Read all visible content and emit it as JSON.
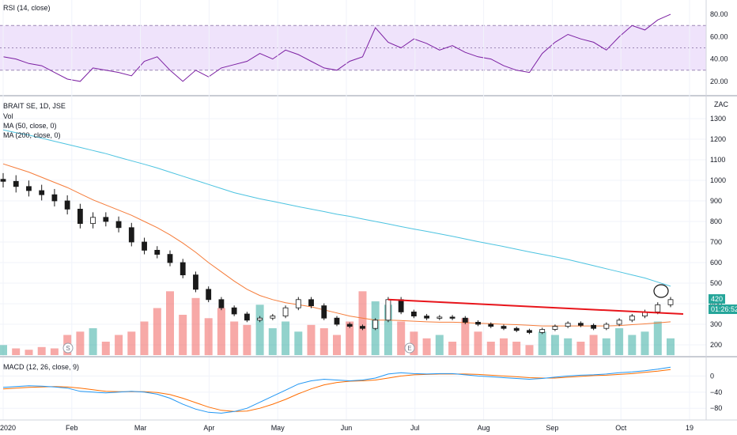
{
  "panes": {
    "rsi_title": "RSI (14, close)",
    "price_title": "BRAIT SE, 1D, JSE",
    "vol_title": "Vol",
    "ma50_title": "MA (50, close, 0)",
    "ma200_title": "MA (200, close, 0)",
    "macd_title": "MACD (12, 26, close, 9)"
  },
  "axis": {
    "currency": "ZAC",
    "rsi_ticks": [
      "80.00",
      "60.00",
      "40.00",
      "20.00"
    ],
    "price_ticks": [
      "1300",
      "1200",
      "1100",
      "1000",
      "900",
      "800",
      "700",
      "600",
      "500",
      "400",
      "300",
      "200"
    ],
    "macd_ticks": [
      "0",
      "−40",
      "−80"
    ],
    "x_ticks": [
      "2020",
      "Feb",
      "Mar",
      "Apr",
      "May",
      "Jun",
      "Jul",
      "Aug",
      "Sep",
      "Oct",
      "19"
    ]
  },
  "last_price": {
    "value": "420",
    "countdown": "01:26:52"
  },
  "markers": {
    "s": "S",
    "e": "E"
  },
  "colors": {
    "up": "#26a69a",
    "down": "#ef5350",
    "ma50": "#f57c3a",
    "ma200": "#4cc3e0",
    "rsi": "#7b1fa2",
    "rsi_band": "#efe3fb",
    "macd": "#2196f3",
    "signal": "#ff6d00",
    "trendline": "#e8151b",
    "tag": "#26a69a"
  },
  "chart_data": [
    {
      "type": "candlestick",
      "title": "BRAIT SE, 1D, JSE",
      "ylim": [
        150,
        1400
      ],
      "x": [
        "2020-01-02",
        "2020-01-08",
        "2020-01-14",
        "2020-01-20",
        "2020-01-24",
        "2020-01-28",
        "2020-02-03",
        "2020-02-07",
        "2020-02-13",
        "2020-02-19",
        "2020-02-25",
        "2020-03-02",
        "2020-03-06",
        "2020-03-12",
        "2020-03-18",
        "2020-03-23",
        "2020-03-27",
        "2020-04-02",
        "2020-04-08",
        "2020-04-16",
        "2020-04-22",
        "2020-04-28",
        "2020-05-04",
        "2020-05-08",
        "2020-05-14",
        "2020-05-20",
        "2020-05-26",
        "2020-06-01",
        "2020-06-05",
        "2020-06-09",
        "2020-06-15",
        "2020-06-19",
        "2020-06-25",
        "2020-07-01",
        "2020-07-07",
        "2020-07-13",
        "2020-07-17",
        "2020-07-23",
        "2020-07-29",
        "2020-08-04",
        "2020-08-10",
        "2020-08-14",
        "2020-08-20",
        "2020-08-26",
        "2020-09-01",
        "2020-09-07",
        "2020-09-11",
        "2020-09-17",
        "2020-09-23",
        "2020-09-29",
        "2020-10-05",
        "2020-10-09",
        "2020-10-15"
      ],
      "close": [
        995,
        970,
        950,
        930,
        900,
        860,
        790,
        820,
        800,
        770,
        700,
        660,
        640,
        600,
        540,
        470,
        420,
        380,
        350,
        320,
        330,
        340,
        380,
        420,
        390,
        330,
        300,
        290,
        280,
        320,
        420,
        360,
        340,
        330,
        335,
        330,
        310,
        300,
        290,
        280,
        270,
        260,
        275,
        290,
        305,
        295,
        280,
        300,
        320,
        340,
        360,
        395,
        420
      ],
      "ma50": [
        1080,
        1060,
        1040,
        1015,
        990,
        965,
        935,
        905,
        880,
        855,
        830,
        800,
        770,
        735,
        695,
        650,
        600,
        555,
        510,
        470,
        440,
        420,
        405,
        395,
        385,
        370,
        355,
        340,
        330,
        320,
        320,
        318,
        315,
        312,
        310,
        310,
        308,
        305,
        303,
        300,
        298,
        295,
        292,
        292,
        292,
        292,
        292,
        292,
        294,
        298,
        302,
        307,
        312
      ],
      "ma200": [
        1245,
        1232,
        1220,
        1205,
        1190,
        1175,
        1160,
        1145,
        1130,
        1112,
        1095,
        1078,
        1060,
        1040,
        1020,
        1000,
        980,
        960,
        940,
        925,
        910,
        898,
        885,
        872,
        860,
        848,
        835,
        825,
        812,
        800,
        788,
        775,
        763,
        752,
        740,
        728,
        715,
        702,
        690,
        678,
        665,
        652,
        640,
        628,
        615,
        600,
        585,
        570,
        555,
        540,
        525,
        505,
        485
      ]
    },
    {
      "type": "bar",
      "title": "Vol",
      "x": [
        "2020-01-02",
        "2020-01-08",
        "2020-01-14",
        "2020-01-20",
        "2020-01-24",
        "2020-01-28",
        "2020-02-03",
        "2020-02-07",
        "2020-02-13",
        "2020-02-19",
        "2020-02-25",
        "2020-03-02",
        "2020-03-06",
        "2020-03-12",
        "2020-03-18",
        "2020-03-23",
        "2020-03-27",
        "2020-04-02",
        "2020-04-08",
        "2020-04-16",
        "2020-04-22",
        "2020-04-28",
        "2020-05-04",
        "2020-05-08",
        "2020-05-14",
        "2020-05-20",
        "2020-05-26",
        "2020-06-01",
        "2020-06-05",
        "2020-06-09",
        "2020-06-15",
        "2020-06-19",
        "2020-06-25",
        "2020-07-01",
        "2020-07-07",
        "2020-07-13",
        "2020-07-17",
        "2020-07-23",
        "2020-07-29",
        "2020-08-04",
        "2020-08-10",
        "2020-08-14",
        "2020-08-20",
        "2020-08-26",
        "2020-09-01",
        "2020-09-07",
        "2020-09-11",
        "2020-09-17",
        "2020-09-23",
        "2020-09-29",
        "2020-10-05",
        "2020-10-09",
        "2020-10-15"
      ],
      "values": [
        0.15,
        0.1,
        0.08,
        0.12,
        0.1,
        0.3,
        0.35,
        0.4,
        0.2,
        0.3,
        0.35,
        0.5,
        0.7,
        0.95,
        0.6,
        0.85,
        0.55,
        0.7,
        0.5,
        0.45,
        0.75,
        0.4,
        0.5,
        0.35,
        0.45,
        0.4,
        0.3,
        0.5,
        0.95,
        0.8,
        0.75,
        0.5,
        0.35,
        0.25,
        0.3,
        0.2,
        0.55,
        0.35,
        0.2,
        0.25,
        0.2,
        0.15,
        0.35,
        0.3,
        0.25,
        0.2,
        0.3,
        0.25,
        0.4,
        0.3,
        0.35,
        0.5,
        0.25
      ]
    },
    {
      "type": "line",
      "title": "RSI (14, close)",
      "ylim": [
        10,
        90
      ],
      "band": [
        30,
        70
      ],
      "x": [
        "2020-01-02",
        "2020-01-08",
        "2020-01-14",
        "2020-01-20",
        "2020-01-24",
        "2020-01-28",
        "2020-02-03",
        "2020-02-07",
        "2020-02-13",
        "2020-02-19",
        "2020-02-25",
        "2020-03-02",
        "2020-03-06",
        "2020-03-12",
        "2020-03-18",
        "2020-03-23",
        "2020-03-27",
        "2020-04-02",
        "2020-04-08",
        "2020-04-16",
        "2020-04-22",
        "2020-04-28",
        "2020-05-04",
        "2020-05-08",
        "2020-05-14",
        "2020-05-20",
        "2020-05-26",
        "2020-06-01",
        "2020-06-05",
        "2020-06-09",
        "2020-06-15",
        "2020-06-19",
        "2020-06-25",
        "2020-07-01",
        "2020-07-07",
        "2020-07-13",
        "2020-07-17",
        "2020-07-23",
        "2020-07-29",
        "2020-08-04",
        "2020-08-10",
        "2020-08-14",
        "2020-08-20",
        "2020-08-26",
        "2020-09-01",
        "2020-09-07",
        "2020-09-11",
        "2020-09-17",
        "2020-09-23",
        "2020-09-29",
        "2020-10-05",
        "2020-10-09",
        "2020-10-15"
      ],
      "values": [
        42,
        40,
        36,
        34,
        28,
        22,
        20,
        32,
        30,
        28,
        25,
        38,
        42,
        30,
        20,
        30,
        24,
        32,
        35,
        38,
        45,
        40,
        48,
        44,
        38,
        32,
        30,
        38,
        42,
        68,
        55,
        50,
        58,
        54,
        48,
        52,
        46,
        42,
        40,
        34,
        30,
        28,
        45,
        55,
        62,
        58,
        55,
        48,
        60,
        70,
        66,
        75,
        80
      ]
    },
    {
      "type": "line",
      "title": "MACD (12, 26, close, 9)",
      "ylim": [
        -105,
        40
      ],
      "x": [
        "2020-01-02",
        "2020-01-08",
        "2020-01-14",
        "2020-01-20",
        "2020-01-24",
        "2020-01-28",
        "2020-02-03",
        "2020-02-07",
        "2020-02-13",
        "2020-02-19",
        "2020-02-25",
        "2020-03-02",
        "2020-03-06",
        "2020-03-12",
        "2020-03-18",
        "2020-03-23",
        "2020-03-27",
        "2020-04-02",
        "2020-04-08",
        "2020-04-16",
        "2020-04-22",
        "2020-04-28",
        "2020-05-04",
        "2020-05-08",
        "2020-05-14",
        "2020-05-20",
        "2020-05-26",
        "2020-06-01",
        "2020-06-05",
        "2020-06-09",
        "2020-06-15",
        "2020-06-19",
        "2020-06-25",
        "2020-07-01",
        "2020-07-07",
        "2020-07-13",
        "2020-07-17",
        "2020-07-23",
        "2020-07-29",
        "2020-08-04",
        "2020-08-10",
        "2020-08-14",
        "2020-08-20",
        "2020-08-26",
        "2020-09-01",
        "2020-09-07",
        "2020-09-11",
        "2020-09-17",
        "2020-09-23",
        "2020-09-29",
        "2020-10-05",
        "2020-10-09",
        "2020-10-15"
      ],
      "series": [
        {
          "values": [
            -28,
            -26,
            -24,
            -25,
            -27,
            -30,
            -38,
            -40,
            -42,
            -40,
            -38,
            -40,
            -45,
            -55,
            -70,
            -82,
            -90,
            -92,
            -88,
            -80,
            -65,
            -50,
            -35,
            -20,
            -12,
            -8,
            -10,
            -12,
            -10,
            -5,
            5,
            8,
            6,
            5,
            6,
            6,
            3,
            0,
            -2,
            -4,
            -6,
            -8,
            -6,
            -3,
            0,
            2,
            3,
            5,
            8,
            10,
            13,
            17,
            22
          ]
        },
        {
          "values": [
            -32,
            -30,
            -28,
            -27,
            -26,
            -27,
            -30,
            -34,
            -38,
            -39,
            -39,
            -39,
            -41,
            -46,
            -55,
            -66,
            -77,
            -85,
            -88,
            -87,
            -80,
            -70,
            -58,
            -44,
            -32,
            -22,
            -16,
            -13,
            -12,
            -10,
            -5,
            0,
            3,
            4,
            5,
            5,
            5,
            4,
            2,
            0,
            -2,
            -4,
            -5,
            -5,
            -3,
            -1,
            1,
            2,
            4,
            6,
            9,
            12,
            16
          ]
        }
      ]
    }
  ]
}
